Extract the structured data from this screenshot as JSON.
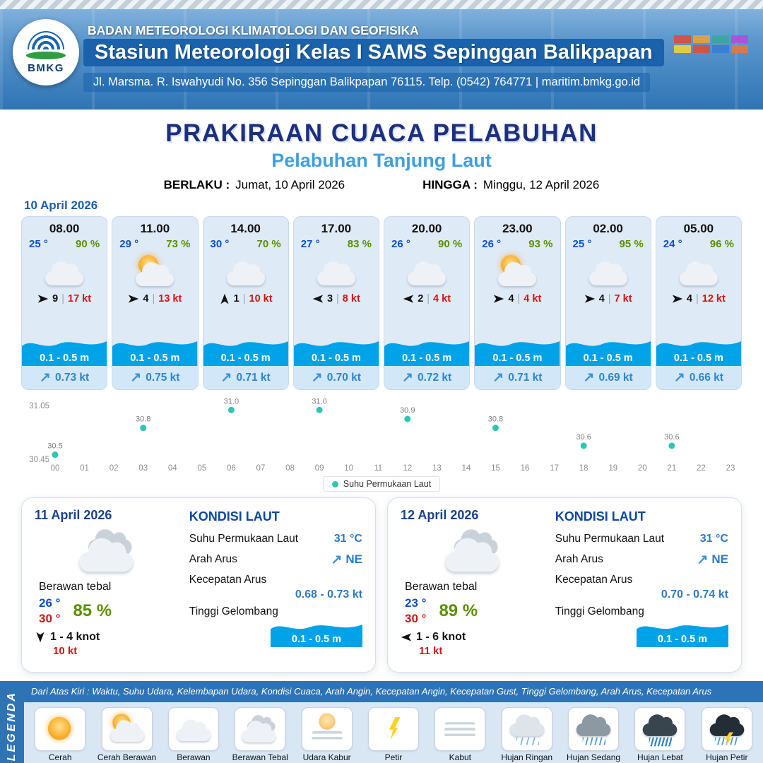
{
  "header": {
    "logo_text": "BMKG",
    "org": "BADAN METEOROLOGI KLIMATOLOGI DAN GEOFISIKA",
    "station": "Stasiun Meteorologi Kelas I SAMS Sepinggan Balikpapan",
    "address": "Jl. Marsma. R. Iswahyudi No. 356 Sepinggan Balikpapan 76115. Telp. (0542) 764771 | maritim.bmkg.go.id"
  },
  "title": {
    "main": "PRAKIRAAN CUACA PELABUHAN",
    "sub": "Pelabuhan Tanjung Laut",
    "berlaku_label": "BERLAKU :",
    "berlaku_value": "Jumat, 10 April 2026",
    "hingga_label": "HINGGA :",
    "hingga_value": "Minggu, 12 April 2026"
  },
  "forecast_date": "10 April 2026",
  "sep": "|",
  "cards": [
    {
      "time": "08.00",
      "temp": "25 °",
      "rh": "90 %",
      "icon": "berawan",
      "wind_speed": "9",
      "wind_gust": "17 kt",
      "wind_dir_deg": 0,
      "wave": "0.1 - 0.5 m",
      "current": "0.73 kt"
    },
    {
      "time": "11.00",
      "temp": "29 °",
      "rh": "73 %",
      "icon": "cerah-berawan",
      "wind_speed": "4",
      "wind_gust": "13 kt",
      "wind_dir_deg": 0,
      "wave": "0.1 - 0.5 m",
      "current": "0.75 kt"
    },
    {
      "time": "14.00",
      "temp": "30 °",
      "rh": "70 %",
      "icon": "berawan",
      "wind_speed": "1",
      "wind_gust": "10 kt",
      "wind_dir_deg": -90,
      "wave": "0.1 - 0.5 m",
      "current": "0.71 kt"
    },
    {
      "time": "17.00",
      "temp": "27 °",
      "rh": "83 %",
      "icon": "berawan",
      "wind_speed": "3",
      "wind_gust": "8 kt",
      "wind_dir_deg": 180,
      "wave": "0.1 - 0.5 m",
      "current": "0.70 kt"
    },
    {
      "time": "20.00",
      "temp": "26 °",
      "rh": "90 %",
      "icon": "berawan",
      "wind_speed": "2",
      "wind_gust": "4 kt",
      "wind_dir_deg": 180,
      "wave": "0.1 - 0.5 m",
      "current": "0.72 kt"
    },
    {
      "time": "23.00",
      "temp": "26 °",
      "rh": "93 %",
      "icon": "cerah-berawan",
      "wind_speed": "4",
      "wind_gust": "4 kt",
      "wind_dir_deg": 0,
      "wave": "0.1 - 0.5 m",
      "current": "0.71 kt"
    },
    {
      "time": "02.00",
      "temp": "25 °",
      "rh": "95 %",
      "icon": "berawan",
      "wind_speed": "4",
      "wind_gust": "7 kt",
      "wind_dir_deg": 0,
      "wave": "0.1 - 0.5 m",
      "current": "0.69 kt"
    },
    {
      "time": "05.00",
      "temp": "24 °",
      "rh": "96 %",
      "icon": "berawan",
      "wind_speed": "4",
      "wind_gust": "12 kt",
      "wind_dir_deg": 0,
      "wave": "0.1 - 0.5 m",
      "current": "0.66 kt"
    }
  ],
  "chart_data": {
    "type": "scatter",
    "title": "",
    "xlabel": "",
    "ylabel": "",
    "series": [
      {
        "name": "Suhu Permukaan Laut",
        "x": [
          0,
          3,
          6,
          9,
          12,
          15,
          18,
          21
        ],
        "values": [
          30.5,
          30.8,
          31.0,
          31.0,
          30.9,
          30.8,
          30.6,
          30.6
        ]
      }
    ],
    "x_ticks": [
      "00",
      "01",
      "02",
      "03",
      "04",
      "05",
      "06",
      "07",
      "08",
      "09",
      "10",
      "11",
      "12",
      "13",
      "14",
      "15",
      "16",
      "17",
      "18",
      "19",
      "20",
      "21",
      "22",
      "23"
    ],
    "ylim": [
      30.45,
      31.05
    ],
    "y_ticks": [
      31.05,
      30.45
    ],
    "marker_color": "#2ec4b6",
    "grid": false,
    "legend_position": "bottom"
  },
  "days": [
    {
      "date": "11 April 2026",
      "icon": "berawan-tebal",
      "condition": "Berawan tebal",
      "temp_min": "26 °",
      "temp_max": "30 °",
      "rh": "85 %",
      "wind_range": "1 - 4 knot",
      "wind_gust": "10 kt",
      "wind_dir_deg": 90,
      "sea": {
        "title": "KONDISI LAUT",
        "sst_label": "Suhu Permukaan Laut",
        "sst": "31 °C",
        "arah_label": "Arah Arus",
        "arah": "NE",
        "kec_label": "Kecepatan Arus",
        "kec": "0.68 - 0.73 kt",
        "wave_label": "Tinggi Gelombang",
        "wave": "0.1 - 0.5 m"
      }
    },
    {
      "date": "12 April 2026",
      "icon": "berawan-tebal",
      "condition": "Berawan tebal",
      "temp_min": "23 °",
      "temp_max": "30 °",
      "rh": "89 %",
      "wind_range": "1 - 6 knot",
      "wind_gust": "11 kt",
      "wind_dir_deg": 180,
      "sea": {
        "title": "KONDISI LAUT",
        "sst_label": "Suhu Permukaan Laut",
        "sst": "31 °C",
        "arah_label": "Arah Arus",
        "arah": "NE",
        "kec_label": "Kecepatan Arus",
        "kec": "0.70 - 0.74 kt",
        "wave_label": "Tinggi Gelombang",
        "wave": "0.1 - 0.5 m"
      }
    }
  ],
  "legend": {
    "tab": "LEGENDA",
    "note": "Dari Atas Kiri : Waktu, Suhu Udara, Kelembapan Udara, Kondisi Cuaca, Arah Angin, Kecepatan Angin, Kecepatan Gust, Tinggi Gelombang, Arah Arus, Kecepatan Arus",
    "items": [
      {
        "label": "Cerah",
        "icon": "cerah"
      },
      {
        "label": "Cerah Berawan",
        "icon": "cerah-berawan"
      },
      {
        "label": "Berawan",
        "icon": "berawan"
      },
      {
        "label": "Berawan Tebal",
        "icon": "berawan-tebal"
      },
      {
        "label": "Udara Kabur",
        "icon": "udara-kabur"
      },
      {
        "label": "Petir",
        "icon": "petir"
      },
      {
        "label": "Kabut",
        "icon": "kabut"
      },
      {
        "label": "Hujan Ringan",
        "icon": "hujan-ringan"
      },
      {
        "label": "Hujan Sedang",
        "icon": "hujan-sedang"
      },
      {
        "label": "Hujan Lebat",
        "icon": "hujan-lebat"
      },
      {
        "label": "Hujan Petir",
        "icon": "hujan-petir"
      }
    ]
  },
  "colors": {
    "accent_blue": "#2e74b5",
    "wave_blue": "#00a2e8",
    "temp_blue": "#0a50cc",
    "humidity_green": "#5a8f00",
    "gust_red": "#d11414",
    "current_blue": "#2f86c8",
    "marker_teal": "#2ec4b6",
    "title_navy": "#1c2f80",
    "subtitle_blue": "#3f9fdc"
  }
}
